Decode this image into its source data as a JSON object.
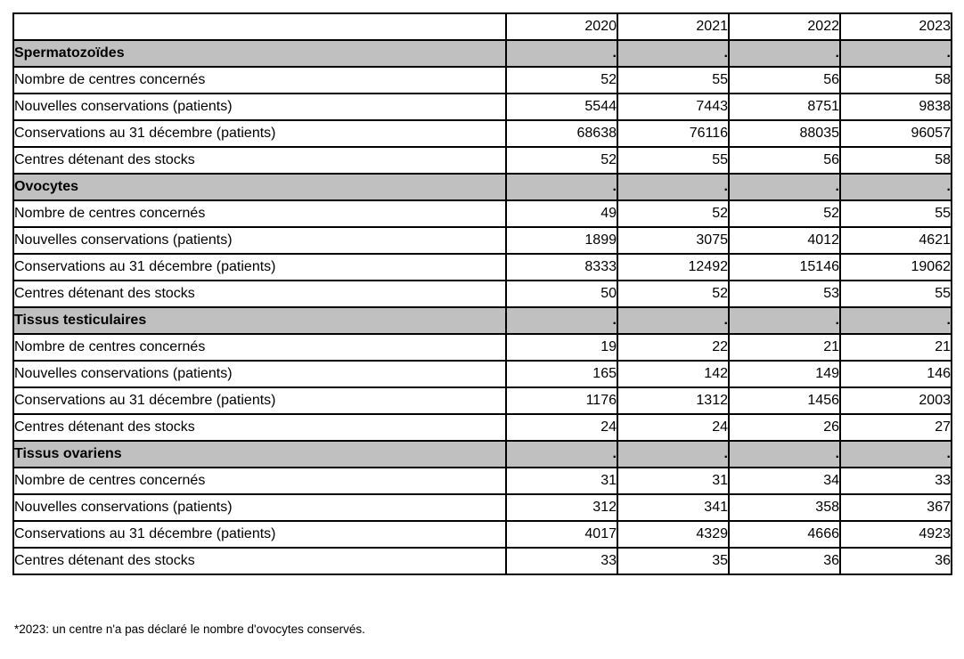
{
  "table": {
    "columns": {
      "label_header": "",
      "years": [
        "2020",
        "2021",
        "2022",
        "2023"
      ]
    },
    "sections": [
      {
        "title": "Spermatozoïdes",
        "placeholders": [
          ".",
          ".",
          ".",
          "."
        ],
        "rows": [
          {
            "label": "Nombre de centres concernés",
            "values": [
              "52",
              "55",
              "56",
              "58"
            ]
          },
          {
            "label": "Nouvelles conservations (patients)",
            "values": [
              "5544",
              "7443",
              "8751",
              "9838"
            ]
          },
          {
            "label": "Conservations au 31 décembre (patients)",
            "values": [
              "68638",
              "76116",
              "88035",
              "96057"
            ]
          },
          {
            "label": "Centres détenant des stocks",
            "values": [
              "52",
              "55",
              "56",
              "58"
            ]
          }
        ]
      },
      {
        "title": "Ovocytes",
        "placeholders": [
          ".",
          ".",
          ".",
          "."
        ],
        "rows": [
          {
            "label": "Nombre de centres concernés",
            "values": [
              "49",
              "52",
              "52",
              "55"
            ]
          },
          {
            "label": "Nouvelles conservations (patients)",
            "values": [
              "1899",
              "3075",
              "4012",
              "4621"
            ]
          },
          {
            "label": "Conservations au 31 décembre (patients)",
            "values": [
              "8333",
              "12492",
              "15146",
              "19062"
            ]
          },
          {
            "label": "Centres détenant des stocks",
            "values": [
              "50",
              "52",
              "53",
              "55"
            ]
          }
        ]
      },
      {
        "title": "Tissus testiculaires",
        "placeholders": [
          ".",
          ".",
          ".",
          "."
        ],
        "rows": [
          {
            "label": "Nombre de centres concernés",
            "values": [
              "19",
              "22",
              "21",
              "21"
            ]
          },
          {
            "label": "Nouvelles conservations (patients)",
            "values": [
              "165",
              "142",
              "149",
              "146"
            ]
          },
          {
            "label": "Conservations au 31 décembre (patients)",
            "values": [
              "1176",
              "1312",
              "1456",
              "2003"
            ]
          },
          {
            "label": "Centres détenant des stocks",
            "values": [
              "24",
              "24",
              "26",
              "27"
            ]
          }
        ]
      },
      {
        "title": "Tissus ovariens",
        "placeholders": [
          ".",
          ".",
          ".",
          "."
        ],
        "rows": [
          {
            "label": "Nombre de centres concernés",
            "values": [
              "31",
              "31",
              "34",
              "33"
            ]
          },
          {
            "label": "Nouvelles conservations (patients)",
            "values": [
              "312",
              "341",
              "358",
              "367"
            ]
          },
          {
            "label": "Conservations au 31 décembre (patients)",
            "values": [
              "4017",
              "4329",
              "4666",
              "4923"
            ]
          },
          {
            "label": "Centres détenant des stocks",
            "values": [
              "33",
              "35",
              "36",
              "36"
            ]
          }
        ]
      }
    ]
  },
  "footnote": "*2023: un centre n'a pas déclaré le nombre d'ovocytes conservés.",
  "colors": {
    "page_bg": "#ffffff",
    "section_row_bg": "#c0c0c0",
    "border": "#000000",
    "text": "#000000"
  }
}
